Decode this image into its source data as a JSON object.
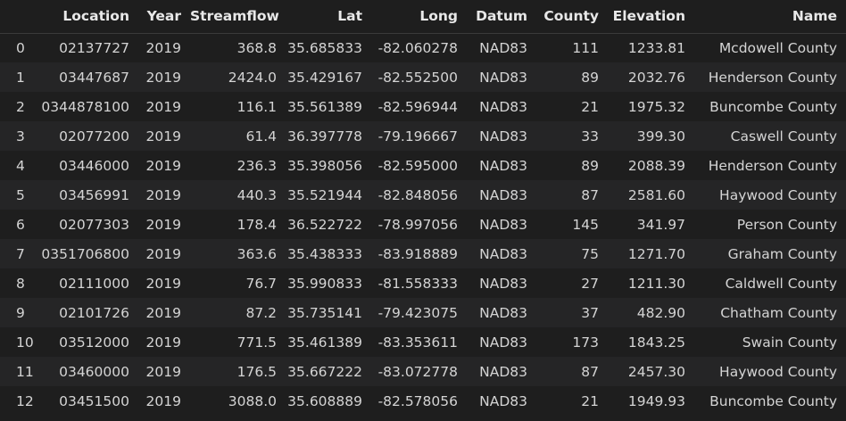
{
  "table": {
    "columns": [
      "",
      "Location",
      "Year",
      "Streamflow",
      "Lat",
      "Long",
      "Datum",
      "County",
      "Elevation",
      "Name"
    ],
    "rows": [
      [
        "0",
        "02137727",
        "2019",
        "368.8",
        "35.685833",
        "-82.060278",
        "NAD83",
        "111",
        "1233.81",
        "Mcdowell County"
      ],
      [
        "1",
        "03447687",
        "2019",
        "2424.0",
        "35.429167",
        "-82.552500",
        "NAD83",
        "89",
        "2032.76",
        "Henderson County"
      ],
      [
        "2",
        "0344878100",
        "2019",
        "116.1",
        "35.561389",
        "-82.596944",
        "NAD83",
        "21",
        "1975.32",
        "Buncombe County"
      ],
      [
        "3",
        "02077200",
        "2019",
        "61.4",
        "36.397778",
        "-79.196667",
        "NAD83",
        "33",
        "399.30",
        "Caswell County"
      ],
      [
        "4",
        "03446000",
        "2019",
        "236.3",
        "35.398056",
        "-82.595000",
        "NAD83",
        "89",
        "2088.39",
        "Henderson County"
      ],
      [
        "5",
        "03456991",
        "2019",
        "440.3",
        "35.521944",
        "-82.848056",
        "NAD83",
        "87",
        "2581.60",
        "Haywood County"
      ],
      [
        "6",
        "02077303",
        "2019",
        "178.4",
        "36.522722",
        "-78.997056",
        "NAD83",
        "145",
        "341.97",
        "Person County"
      ],
      [
        "7",
        "0351706800",
        "2019",
        "363.6",
        "35.438333",
        "-83.918889",
        "NAD83",
        "75",
        "1271.70",
        "Graham County"
      ],
      [
        "8",
        "02111000",
        "2019",
        "76.7",
        "35.990833",
        "-81.558333",
        "NAD83",
        "27",
        "1211.30",
        "Caldwell County"
      ],
      [
        "9",
        "02101726",
        "2019",
        "87.2",
        "35.735141",
        "-79.423075",
        "NAD83",
        "37",
        "482.90",
        "Chatham County"
      ],
      [
        "10",
        "03512000",
        "2019",
        "771.5",
        "35.461389",
        "-83.353611",
        "NAD83",
        "173",
        "1843.25",
        "Swain County"
      ],
      [
        "11",
        "03460000",
        "2019",
        "176.5",
        "35.667222",
        "-83.072778",
        "NAD83",
        "87",
        "2457.30",
        "Haywood County"
      ],
      [
        "12",
        "03451500",
        "2019",
        "3088.0",
        "35.608889",
        "-82.578056",
        "NAD83",
        "21",
        "1949.93",
        "Buncombe County"
      ]
    ]
  }
}
